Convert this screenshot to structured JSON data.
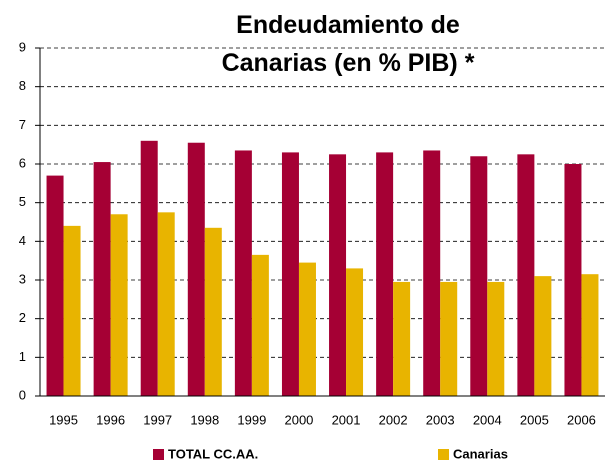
{
  "chart_data": {
    "type": "bar",
    "title": "Endeudamiento de Canarias (en % PIB) *",
    "categories": [
      "1995",
      "1996",
      "1997",
      "1998",
      "1999",
      "2000",
      "2001",
      "2002",
      "2003",
      "2004",
      "2005",
      "2006"
    ],
    "series": [
      {
        "name": "TOTAL CC.AA.",
        "color": "#a50034",
        "values": [
          5.7,
          6.05,
          6.6,
          6.55,
          6.35,
          6.3,
          6.25,
          6.3,
          6.35,
          6.2,
          6.25,
          6.0
        ]
      },
      {
        "name": "Canarias",
        "color": "#e8b400",
        "values": [
          4.4,
          4.7,
          4.75,
          4.35,
          3.65,
          3.45,
          3.3,
          2.95,
          2.95,
          2.95,
          3.1,
          3.15
        ]
      }
    ],
    "ylim": [
      0,
      9
    ],
    "yticks": [
      0,
      1,
      2,
      3,
      4,
      5,
      6,
      7,
      8,
      9
    ],
    "grid": true,
    "legend": "bottom"
  }
}
